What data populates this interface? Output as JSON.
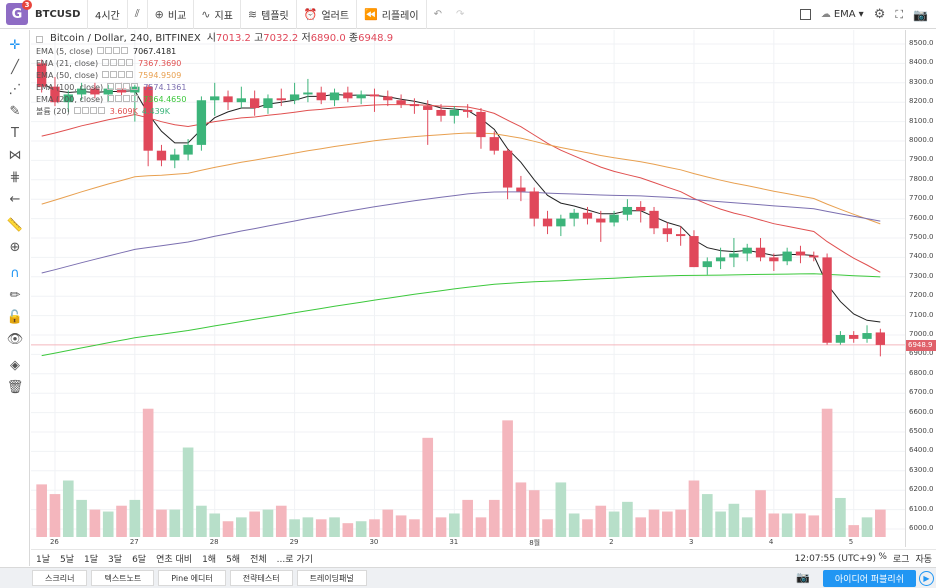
{
  "toolbar": {
    "logo_letter": "G",
    "logo_badge": "3",
    "symbol": "BTCUSD",
    "interval": "4시간",
    "compare": "비교",
    "indicators": "지표",
    "templates": "템플릿",
    "alerts": "얼러트",
    "replay": "리플레이",
    "ema_label": "EMA"
  },
  "legend": {
    "title": "Bitcoin / Dollar, 240, BITFINEX",
    "ohlc": {
      "o_label": "시",
      "o": "7013.2",
      "h_label": "고",
      "h": "7032.2",
      "l_label": "저",
      "l": "6890.0",
      "c_label": "종",
      "c": "6948.9"
    },
    "rows": [
      {
        "name": "EMA (5, close)",
        "value": "7067.4181",
        "color": "#222222"
      },
      {
        "name": "EMA (21, close)",
        "value": "7367.3690",
        "color": "#e05050"
      },
      {
        "name": "EMA (50, close)",
        "value": "7594.9509",
        "color": "#e8a050"
      },
      {
        "name": "EMA (100, close)",
        "value": "7574.1361",
        "color": "#7b6fb0"
      },
      {
        "name": "EMA (200, close)",
        "value": "7364.4650",
        "color": "#3cc83c"
      },
      {
        "name": "볼륨 (20)",
        "value": "3.609K",
        "value2": "4.439K",
        "color": "#e05050"
      }
    ]
  },
  "price_axis": {
    "ticks": [
      "8500.0",
      "8400.0",
      "8300.0",
      "8200.0",
      "8100.0",
      "8000.0",
      "7900.0",
      "7800.0",
      "7700.0",
      "7600.0",
      "7500.0",
      "7400.0",
      "7300.0",
      "7200.0",
      "7100.0",
      "7000.0",
      "6900.0",
      "6800.0",
      "6700.0",
      "6600.0",
      "6500.0",
      "6400.0",
      "6300.0",
      "6200.0",
      "6100.0",
      "6000.0"
    ],
    "current": "6948.9"
  },
  "date_axis": [
    "26",
    "27",
    "28",
    "29",
    "30",
    "31",
    "8월",
    "2",
    "3",
    "4",
    "5"
  ],
  "bottom": {
    "ranges": [
      "1날",
      "5날",
      "1달",
      "3달",
      "6달",
      "연초 대비",
      "1해",
      "5해",
      "전체",
      "...로 가기"
    ],
    "time": "12:07:55 (UTC+9)",
    "percent": "%",
    "log": "로그",
    "auto": "자동"
  },
  "footer": {
    "tabs": [
      "스크리너",
      "텍스트노트",
      "Pine 에디터",
      "전략테스터",
      "트레이딩패널"
    ],
    "replay_button": "아이디어 퍼블리쉬"
  },
  "colors": {
    "up": "#3cb47a",
    "down": "#e0485a",
    "vol_up": "#b7dfc9",
    "vol_down": "#f4b6bd",
    "accent": "#2196f3"
  },
  "chart_data": {
    "type": "candlestick",
    "x": [
      "26",
      "26",
      "26",
      "26",
      "26",
      "26",
      "27",
      "27",
      "27",
      "27",
      "27",
      "27",
      "28",
      "28",
      "28",
      "28",
      "28",
      "28",
      "29",
      "29",
      "29",
      "29",
      "29",
      "29",
      "30",
      "30",
      "30",
      "30",
      "30",
      "30",
      "31",
      "31",
      "31",
      "31",
      "31",
      "31",
      "8월",
      "8월",
      "8월",
      "8월",
      "8월",
      "8월",
      "2",
      "2",
      "2",
      "2",
      "2",
      "2",
      "3",
      "3",
      "3",
      "3",
      "3",
      "3",
      "4",
      "4",
      "4",
      "4",
      "4",
      "4",
      "5",
      "5",
      "5",
      "5"
    ],
    "candles": [
      [
        8400,
        8420,
        8250,
        8280
      ],
      [
        8280,
        8330,
        8180,
        8200
      ],
      [
        8200,
        8260,
        8150,
        8240
      ],
      [
        8240,
        8300,
        8210,
        8270
      ],
      [
        8270,
        8300,
        8220,
        8240
      ],
      [
        8240,
        8290,
        8200,
        8270
      ],
      [
        8270,
        8300,
        8220,
        8250
      ],
      [
        8250,
        8290,
        8100,
        8280
      ],
      [
        8280,
        8290,
        7870,
        7950
      ],
      [
        7950,
        7980,
        7870,
        7900
      ],
      [
        7900,
        7960,
        7860,
        7930
      ],
      [
        7930,
        8010,
        7900,
        7980
      ],
      [
        7980,
        8230,
        7950,
        8210
      ],
      [
        8210,
        8300,
        8130,
        8230
      ],
      [
        8230,
        8260,
        8160,
        8200
      ],
      [
        8200,
        8280,
        8170,
        8220
      ],
      [
        8220,
        8260,
        8130,
        8170
      ],
      [
        8170,
        8240,
        8140,
        8220
      ],
      [
        8220,
        8270,
        8180,
        8210
      ],
      [
        8210,
        8300,
        8190,
        8240
      ],
      [
        8240,
        8320,
        8200,
        8250
      ],
      [
        8250,
        8280,
        8190,
        8210
      ],
      [
        8210,
        8270,
        8180,
        8250
      ],
      [
        8250,
        8280,
        8200,
        8220
      ],
      [
        8220,
        8260,
        8190,
        8240
      ],
      [
        8240,
        8270,
        8150,
        8230
      ],
      [
        8230,
        8260,
        8180,
        8210
      ],
      [
        8210,
        8240,
        8170,
        8190
      ],
      [
        8190,
        8220,
        8140,
        8180
      ],
      [
        8180,
        8210,
        7980,
        8160
      ],
      [
        8160,
        8190,
        8100,
        8130
      ],
      [
        8130,
        8180,
        8090,
        8160
      ],
      [
        8160,
        8190,
        8120,
        8150
      ],
      [
        8150,
        8170,
        7960,
        8020
      ],
      [
        8020,
        8050,
        7930,
        7950
      ],
      [
        7950,
        7960,
        7700,
        7760
      ],
      [
        7760,
        7820,
        7690,
        7740
      ],
      [
        7740,
        7760,
        7560,
        7600
      ],
      [
        7600,
        7640,
        7520,
        7560
      ],
      [
        7560,
        7620,
        7510,
        7600
      ],
      [
        7600,
        7650,
        7560,
        7630
      ],
      [
        7630,
        7660,
        7570,
        7600
      ],
      [
        7600,
        7640,
        7480,
        7580
      ],
      [
        7580,
        7640,
        7560,
        7620
      ],
      [
        7620,
        7700,
        7590,
        7660
      ],
      [
        7660,
        7690,
        7580,
        7640
      ],
      [
        7640,
        7660,
        7520,
        7550
      ],
      [
        7550,
        7580,
        7480,
        7520
      ],
      [
        7520,
        7560,
        7460,
        7510
      ],
      [
        7510,
        7540,
        7350,
        7350
      ],
      [
        7350,
        7400,
        7310,
        7380
      ],
      [
        7380,
        7450,
        7340,
        7400
      ],
      [
        7400,
        7500,
        7350,
        7420
      ],
      [
        7420,
        7470,
        7380,
        7450
      ],
      [
        7450,
        7500,
        7380,
        7400
      ],
      [
        7400,
        7420,
        7330,
        7380
      ],
      [
        7380,
        7450,
        7360,
        7430
      ],
      [
        7430,
        7460,
        7370,
        7410
      ],
      [
        7410,
        7430,
        7380,
        7400
      ],
      [
        7400,
        7420,
        6950,
        6960
      ],
      [
        6960,
        7020,
        6950,
        7000
      ],
      [
        7000,
        7020,
        6960,
        6980
      ],
      [
        6980,
        7050,
        6960,
        7010
      ],
      [
        7013.2,
        7032.2,
        6890.0,
        6948.9
      ]
    ],
    "volume": [
      6230,
      6180,
      6250,
      6150,
      6100,
      6090,
      6120,
      6150,
      6620,
      6100,
      6100,
      6420,
      6120,
      6080,
      6040,
      6060,
      6090,
      6100,
      6120,
      6050,
      6060,
      6050,
      6060,
      6030,
      6040,
      6050,
      6100,
      6070,
      6050,
      6470,
      6060,
      6080,
      6150,
      6060,
      6150,
      6560,
      6240,
      6200,
      6050,
      6240,
      6080,
      6050,
      6120,
      6090,
      6140,
      6060,
      6100,
      6090,
      6100,
      6250,
      6180,
      6090,
      6130,
      6060,
      6200,
      6080,
      6080,
      6080,
      6070,
      6620,
      6160,
      6020,
      6060,
      6100
    ],
    "ema": {
      "EMA (5, close)": [
        8300,
        8260,
        8250,
        8255,
        8250,
        8255,
        8255,
        8260,
        8140,
        8050,
        7990,
        7990,
        8060,
        8120,
        8150,
        8170,
        8170,
        8190,
        8200,
        8210,
        8230,
        8230,
        8240,
        8235,
        8237,
        8235,
        8228,
        8215,
        8205,
        8190,
        8170,
        8165,
        8158,
        8115,
        8060,
        7960,
        7890,
        7800,
        7720,
        7680,
        7665,
        7645,
        7625,
        7625,
        7640,
        7640,
        7610,
        7580,
        7560,
        7490,
        7450,
        7435,
        7430,
        7436,
        7424,
        7410,
        7415,
        7415,
        7410,
        7262,
        7172,
        7108,
        7076,
        7067
      ]
    },
    "ylim": [
      6000,
      8500
    ]
  }
}
